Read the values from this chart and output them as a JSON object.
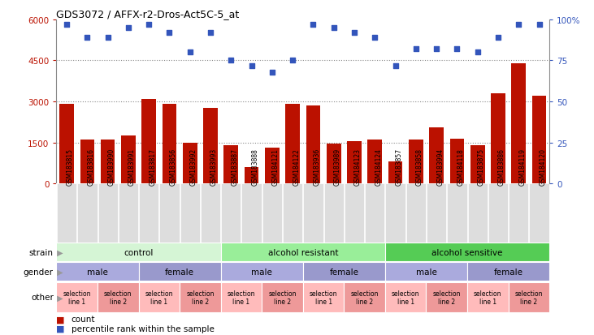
{
  "title": "GDS3072 / AFFX-r2-Dros-Act5C-5_at",
  "samples": [
    "GSM183815",
    "GSM183816",
    "GSM183990",
    "GSM183991",
    "GSM183817",
    "GSM183856",
    "GSM183992",
    "GSM183993",
    "GSM183887",
    "GSM183888",
    "GSM184121",
    "GSM184122",
    "GSM183936",
    "GSM183989",
    "GSM184123",
    "GSM184124",
    "GSM183857",
    "GSM183858",
    "GSM183994",
    "GSM184118",
    "GSM183875",
    "GSM183886",
    "GSM184119",
    "GSM184120"
  ],
  "counts": [
    2900,
    1600,
    1600,
    1750,
    3100,
    2900,
    1500,
    2750,
    1400,
    600,
    1300,
    2900,
    2850,
    1450,
    1550,
    1600,
    800,
    1600,
    2050,
    1650,
    1400,
    3300,
    4400,
    3200
  ],
  "percentiles": [
    97,
    89,
    89,
    95,
    97,
    92,
    80,
    92,
    75,
    72,
    68,
    75,
    97,
    95,
    92,
    89,
    72,
    82,
    82,
    82,
    80,
    89,
    97,
    97
  ],
  "strain_groups": [
    {
      "label": "control",
      "start": 0,
      "end": 7,
      "color": "#d5f5d5"
    },
    {
      "label": "alcohol resistant",
      "start": 8,
      "end": 15,
      "color": "#99ee99"
    },
    {
      "label": "alcohol sensitive",
      "start": 16,
      "end": 23,
      "color": "#55cc55"
    }
  ],
  "gender_groups": [
    {
      "label": "male",
      "start": 0,
      "end": 3,
      "color": "#aaaadd"
    },
    {
      "label": "female",
      "start": 4,
      "end": 7,
      "color": "#9999cc"
    },
    {
      "label": "male",
      "start": 8,
      "end": 11,
      "color": "#aaaadd"
    },
    {
      "label": "female",
      "start": 12,
      "end": 15,
      "color": "#9999cc"
    },
    {
      "label": "male",
      "start": 16,
      "end": 19,
      "color": "#aaaadd"
    },
    {
      "label": "female",
      "start": 20,
      "end": 23,
      "color": "#9999cc"
    }
  ],
  "other_groups": [
    {
      "label": "selection\nline 1",
      "start": 0,
      "end": 1,
      "color": "#ffbbbb"
    },
    {
      "label": "selection\nline 2",
      "start": 2,
      "end": 3,
      "color": "#ee9999"
    },
    {
      "label": "selection\nline 1",
      "start": 4,
      "end": 5,
      "color": "#ffbbbb"
    },
    {
      "label": "selection\nline 2",
      "start": 6,
      "end": 7,
      "color": "#ee9999"
    },
    {
      "label": "selection\nline 1",
      "start": 8,
      "end": 9,
      "color": "#ffbbbb"
    },
    {
      "label": "selection\nline 2",
      "start": 10,
      "end": 11,
      "color": "#ee9999"
    },
    {
      "label": "selection\nline 1",
      "start": 12,
      "end": 13,
      "color": "#ffbbbb"
    },
    {
      "label": "selection\nline 2",
      "start": 14,
      "end": 15,
      "color": "#ee9999"
    },
    {
      "label": "selection\nline 1",
      "start": 16,
      "end": 17,
      "color": "#ffbbbb"
    },
    {
      "label": "selection\nline 2",
      "start": 18,
      "end": 19,
      "color": "#ee9999"
    },
    {
      "label": "selection\nline 1",
      "start": 20,
      "end": 21,
      "color": "#ffbbbb"
    },
    {
      "label": "selection\nline 2",
      "start": 22,
      "end": 23,
      "color": "#ee9999"
    }
  ],
  "bar_color": "#bb1100",
  "dot_color": "#3355bb",
  "ylim_left": [
    0,
    6000
  ],
  "ylim_right": [
    0,
    100
  ],
  "yticks_left": [
    0,
    1500,
    3000,
    4500,
    6000
  ],
  "yticks_right": [
    0,
    25,
    50,
    75,
    100
  ],
  "ytick_labels_right": [
    "0",
    "25",
    "50",
    "75",
    "100%"
  ],
  "background_color": "#ffffff",
  "grid_color": "#888888",
  "tick_bg_color": "#dddddd"
}
